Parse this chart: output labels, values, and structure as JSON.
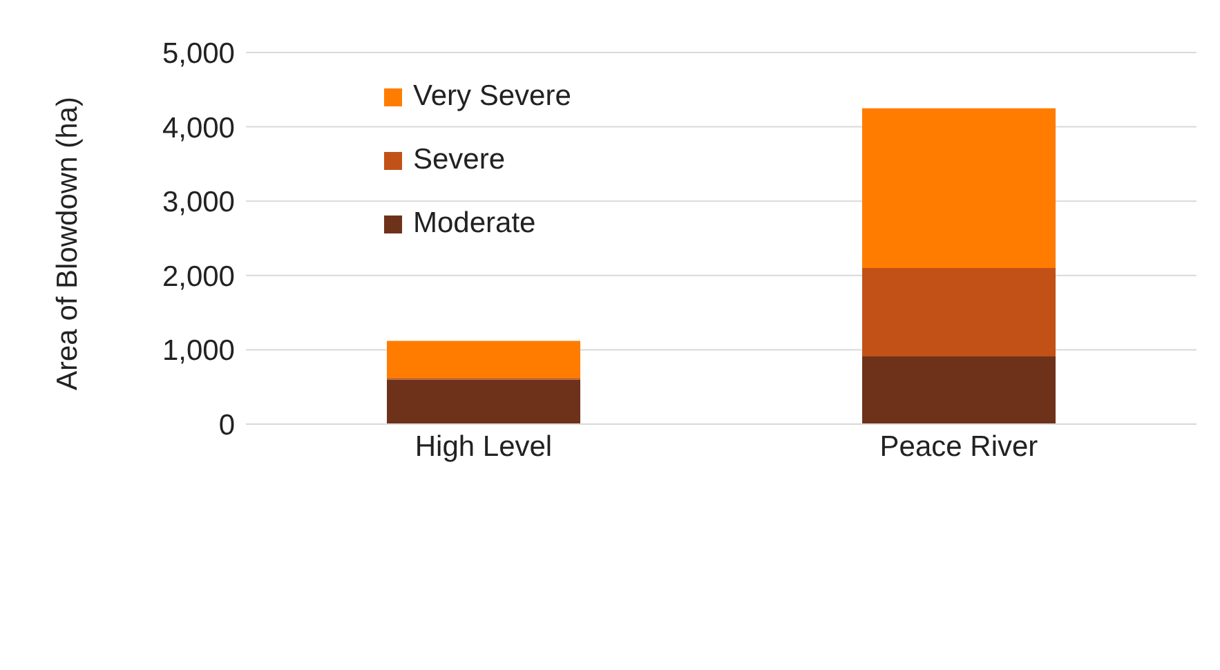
{
  "chart_data": {
    "type": "bar",
    "stacked": true,
    "ylabel": "Area of Blowdown (ha)",
    "categories": [
      "High Level",
      "Peace River"
    ],
    "series": [
      {
        "name": "Moderate",
        "color": "#6e321b",
        "values": [
          600,
          910
        ]
      },
      {
        "name": "Severe",
        "color": "#c25118",
        "values": [
          20,
          1190
        ]
      },
      {
        "name": "Very Severe",
        "color": "#ff7c00",
        "values": [
          500,
          2150
        ]
      }
    ],
    "ylim": [
      0,
      5000
    ],
    "yticks": [
      {
        "value": 0,
        "label": "0"
      },
      {
        "value": 1000,
        "label": "1,000"
      },
      {
        "value": 2000,
        "label": "2,000"
      },
      {
        "value": 3000,
        "label": "3,000"
      },
      {
        "value": 4000,
        "label": "4,000"
      },
      {
        "value": 5000,
        "label": "5,000"
      }
    ],
    "grid": "y",
    "legend": "top left"
  }
}
